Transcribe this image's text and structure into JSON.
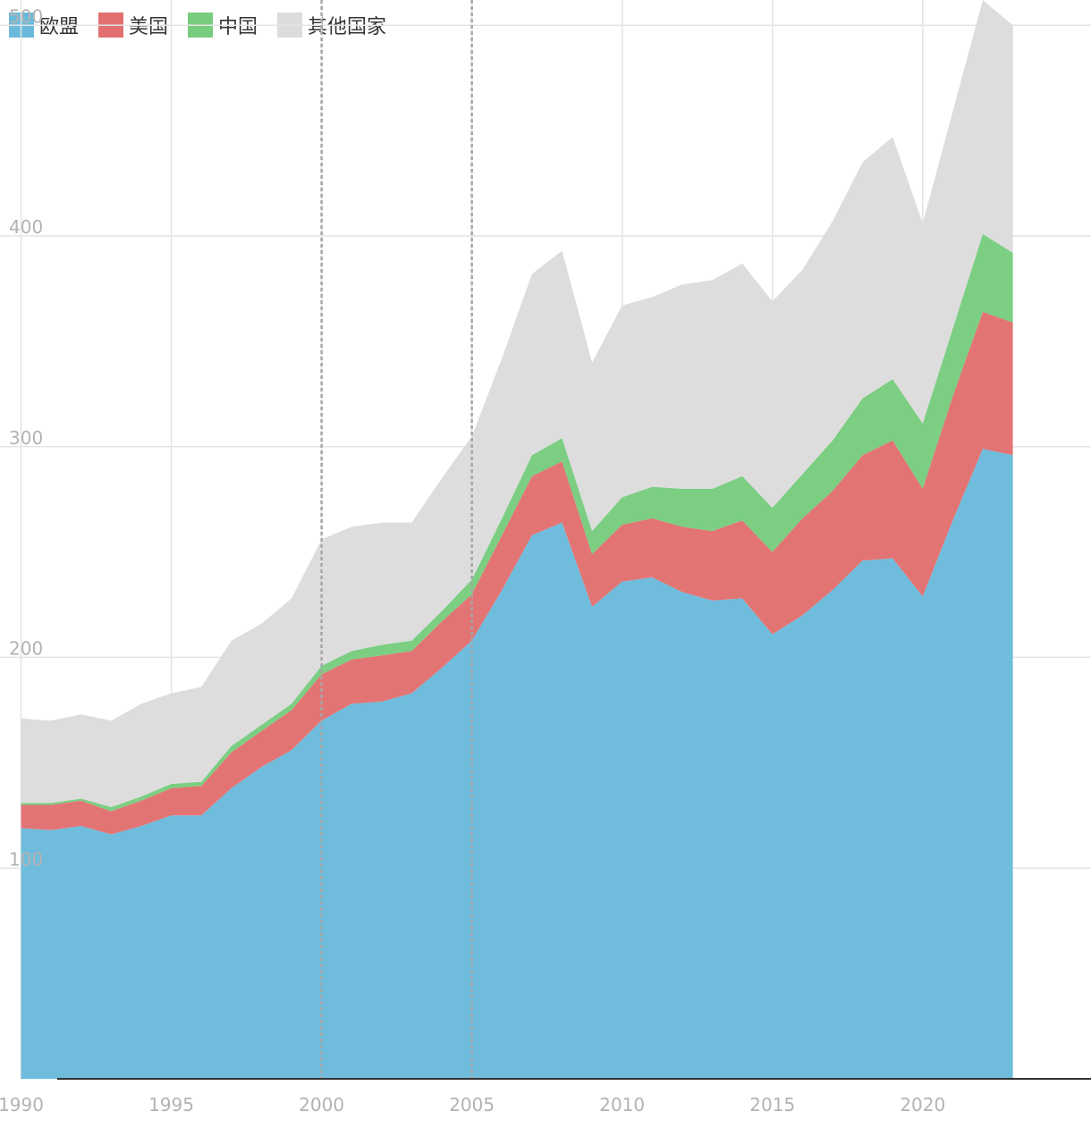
{
  "legend": [
    {
      "name": "欧盟",
      "color": "#6bbadb"
    },
    {
      "name": "美国",
      "color": "#e27070"
    },
    {
      "name": "中国",
      "color": "#77cc7e"
    },
    {
      "name": "其他国家",
      "color": "#dcdcdc"
    }
  ],
  "chart_data": {
    "type": "area",
    "stacked": true,
    "title": "",
    "xlabel": "",
    "ylabel": "",
    "x": [
      1990,
      1991,
      1992,
      1993,
      1994,
      1995,
      1996,
      1997,
      1998,
      1999,
      2000,
      2001,
      2002,
      2003,
      2004,
      2005,
      2006,
      2007,
      2008,
      2009,
      2010,
      2011,
      2012,
      2013,
      2014,
      2015,
      2016,
      2017,
      2018,
      2019,
      2020,
      2021,
      2022,
      2023
    ],
    "x_ticks": [
      1990,
      1995,
      2000,
      2005,
      2010,
      2015,
      2020
    ],
    "y_ticks": [
      100,
      200,
      300,
      400,
      500
    ],
    "xlim": [
      1989.3,
      2025.6
    ],
    "ylim": [
      0,
      512
    ],
    "reference_lines": [
      2000,
      2005
    ],
    "series": [
      {
        "name": "欧盟",
        "color": "#6bbadb",
        "values": [
          119,
          118,
          120,
          116,
          120,
          125,
          125,
          138,
          148,
          156,
          170,
          178,
          179,
          183,
          195,
          208,
          232,
          258,
          264,
          224,
          236,
          238,
          231,
          227,
          228,
          211,
          220,
          232,
          246,
          247,
          229,
          265,
          299,
          296
        ]
      },
      {
        "name": "美国",
        "color": "#e27070",
        "values": [
          11,
          12,
          12,
          11,
          12,
          13,
          14,
          17,
          17,
          19,
          22,
          21,
          22,
          20,
          22,
          22,
          26,
          28,
          29,
          25,
          27,
          28,
          31,
          33,
          37,
          39,
          46,
          47,
          50,
          56,
          51,
          59,
          65,
          63
        ]
      },
      {
        "name": "中国",
        "color": "#77cc7e",
        "values": [
          1,
          1,
          1,
          2,
          2,
          2,
          2,
          3,
          3,
          3,
          4,
          4,
          5,
          5,
          5,
          7,
          8,
          10,
          11,
          11,
          13,
          15,
          18,
          20,
          21,
          21,
          21,
          24,
          27,
          29,
          31,
          32,
          37,
          33
        ]
      },
      {
        "name": "其他国家",
        "color": "#dcdcdc",
        "values": [
          40,
          39,
          40,
          41,
          44,
          43,
          45,
          50,
          48,
          50,
          60,
          59,
          58,
          56,
          63,
          68,
          76,
          86,
          89,
          80,
          91,
          90,
          97,
          99,
          101,
          98,
          97,
          104,
          112,
          115,
          95,
          103,
          111,
          108
        ]
      }
    ]
  }
}
